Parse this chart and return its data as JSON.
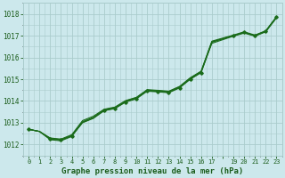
{
  "title": "Graphe pression niveau de la mer (hPa)",
  "bg_color": "#cce8ec",
  "grid_color": "#aacccc",
  "line_color": "#1a6b1a",
  "dark_green": "#1a5c1a",
  "xlim": [
    -0.5,
    23.5
  ],
  "ylim": [
    1011.5,
    1018.5
  ],
  "yticks": [
    1012,
    1013,
    1014,
    1015,
    1016,
    1017,
    1018
  ],
  "xtick_labels": [
    "0",
    "1",
    "2",
    "3",
    "4",
    "5",
    "6",
    "7",
    "8",
    "9",
    "10",
    "11",
    "12",
    "13",
    "14",
    "15",
    "16",
    "17",
    "",
    "19",
    "20",
    "21",
    "22",
    "23"
  ],
  "series": [
    [
      0,
      1012.7
    ],
    [
      1,
      1012.6
    ],
    [
      2,
      1012.25
    ],
    [
      3,
      1012.2
    ],
    [
      4,
      1012.4
    ],
    [
      5,
      1013.0
    ],
    [
      6,
      1013.2
    ],
    [
      7,
      1013.55
    ],
    [
      8,
      1013.65
    ],
    [
      9,
      1013.95
    ],
    [
      10,
      1014.1
    ],
    [
      11,
      1014.45
    ],
    [
      12,
      1014.42
    ],
    [
      13,
      1014.38
    ],
    [
      14,
      1014.6
    ],
    [
      15,
      1015.0
    ],
    [
      16,
      1015.3
    ],
    [
      17,
      1016.7
    ],
    [
      19,
      1017.0
    ],
    [
      20,
      1017.15
    ],
    [
      21,
      1017.0
    ],
    [
      22,
      1017.2
    ],
    [
      23,
      1017.85
    ]
  ],
  "lines": [
    {
      "x": [
        0,
        1,
        2,
        3,
        4,
        5,
        6,
        7,
        8,
        9,
        10,
        11,
        12,
        13,
        14,
        15,
        16,
        17,
        19,
        20,
        21,
        22,
        23
      ],
      "y": [
        1012.7,
        1012.6,
        1012.25,
        1012.2,
        1012.4,
        1013.0,
        1013.2,
        1013.55,
        1013.65,
        1013.95,
        1014.1,
        1014.45,
        1014.42,
        1014.38,
        1014.6,
        1015.0,
        1015.3,
        1016.7,
        1017.0,
        1017.15,
        1017.0,
        1017.2,
        1017.85
      ]
    },
    {
      "x": [
        0,
        1,
        2,
        3,
        4,
        5,
        6,
        7,
        8,
        9,
        10,
        11,
        12,
        13,
        14,
        15,
        16,
        17,
        19,
        20,
        21,
        22,
        23
      ],
      "y": [
        1012.7,
        1012.6,
        1012.22,
        1012.17,
        1012.37,
        1013.02,
        1013.22,
        1013.57,
        1013.67,
        1013.97,
        1014.12,
        1014.47,
        1014.44,
        1014.4,
        1014.62,
        1015.02,
        1015.32,
        1016.65,
        1016.98,
        1017.12,
        1016.98,
        1017.18,
        1017.82
      ]
    },
    {
      "x": [
        0,
        1,
        2,
        3,
        4,
        5,
        6,
        7,
        8,
        9,
        10,
        11,
        12,
        13,
        14,
        15,
        16,
        17,
        19,
        20,
        21,
        22,
        23
      ],
      "y": [
        1012.7,
        1012.6,
        1012.3,
        1012.25,
        1012.45,
        1013.1,
        1013.3,
        1013.62,
        1013.72,
        1014.02,
        1014.17,
        1014.52,
        1014.49,
        1014.45,
        1014.67,
        1015.07,
        1015.37,
        1016.75,
        1017.03,
        1017.18,
        1017.03,
        1017.23,
        1017.88
      ]
    },
    {
      "x": [
        0,
        1,
        2,
        3,
        4,
        5,
        6,
        7,
        8,
        9,
        10,
        11,
        12,
        13,
        14,
        15,
        16,
        17,
        19,
        20,
        21,
        22,
        23
      ],
      "y": [
        1012.7,
        1012.6,
        1012.28,
        1012.22,
        1012.42,
        1013.05,
        1013.25,
        1013.6,
        1013.7,
        1014.0,
        1014.15,
        1014.5,
        1014.47,
        1014.43,
        1014.65,
        1015.05,
        1015.35,
        1016.72,
        1017.01,
        1017.16,
        1017.01,
        1017.21,
        1017.86
      ]
    }
  ],
  "marker_x": [
    0,
    2,
    3,
    4,
    7,
    8,
    9,
    10,
    11,
    12,
    13,
    14,
    15,
    16,
    19,
    20,
    21,
    22,
    23
  ],
  "marker_y": [
    1012.7,
    1012.25,
    1012.2,
    1012.4,
    1013.55,
    1013.65,
    1013.95,
    1014.1,
    1014.45,
    1014.42,
    1014.38,
    1014.6,
    1015.0,
    1015.3,
    1017.0,
    1017.15,
    1017.0,
    1017.2,
    1017.85
  ]
}
